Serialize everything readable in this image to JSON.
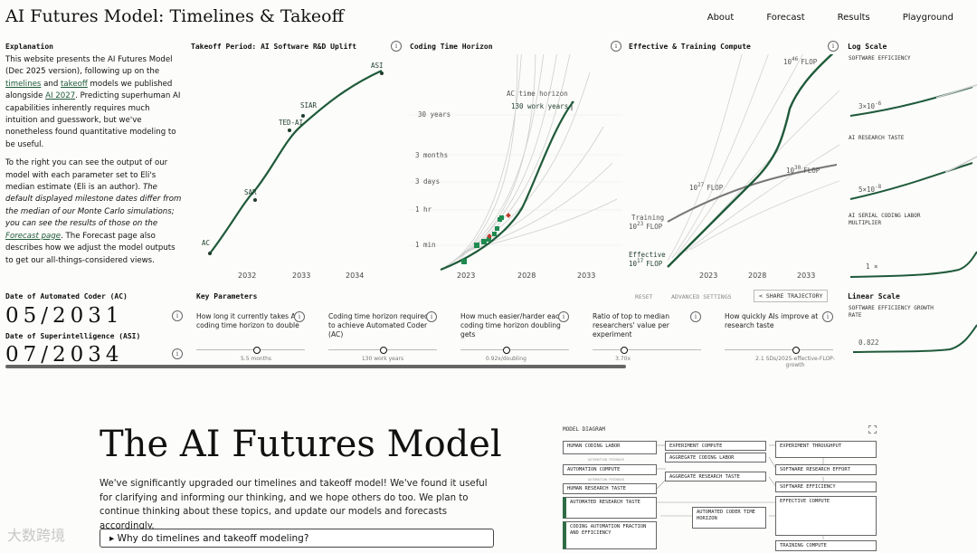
{
  "header": {
    "title": "AI Futures Model: Timelines & Takeoff",
    "nav": [
      "About",
      "Forecast",
      "Results",
      "Playground"
    ]
  },
  "explanation": {
    "heading": "Explanation",
    "p1_a": "This website presents the AI Futures Model (Dec 2025 version), following up on the ",
    "p1_link1": "timelines",
    "p1_b": " and ",
    "p1_link2": "takeoff",
    "p1_c": " models we published alongside ",
    "p1_link3": "AI 2027",
    "p1_d": ". Predicting superhuman AI capabilities inherently requires much intuition and guesswork, but we've nonetheless found quantitative modeling to be useful.",
    "p2_a": "To the right you can see the output of our model with each parameter set to Eli's median estimate (Eli is an author). ",
    "p2_em1": "The default displayed milestone dates differ from the median of our Monte Carlo simulations; you can see the results of those on the ",
    "p2_link": "Forecast page",
    "p2_b": ". The Forecast page also describes how we adjust the model outputs to get our all-things-considered views."
  },
  "takeoff_panel": {
    "title": "Takeoff Period: AI Software R&D Uplift",
    "milestones": [
      "AC",
      "SAR",
      "TED-AI",
      "SIAR",
      "ASI"
    ],
    "x_ticks": [
      "2032",
      "2033",
      "2034"
    ]
  },
  "horizon_panel": {
    "title": "Coding Time Horizon",
    "y_ticks": [
      "30 years",
      "3 months",
      "3 days",
      "1 hr",
      "1 min"
    ],
    "x_ticks": [
      "2023",
      "2028",
      "2033"
    ],
    "annotation_title": "AC time horizon",
    "annotation_value": "130 work years"
  },
  "compute_panel": {
    "title": "Effective & Training Compute",
    "labels": [
      {
        "base": "10",
        "exp": "46",
        "unit": "FLOP"
      },
      {
        "base": "10",
        "exp": "30",
        "unit": "FLOP"
      },
      {
        "base": "10",
        "exp": "27",
        "unit": "FLOP"
      },
      {
        "base": "10",
        "exp": "23",
        "unit": "FLOP"
      },
      {
        "base": "10",
        "exp": "17",
        "unit": "FLOP"
      }
    ],
    "series_training": "Training",
    "series_effective": "Effective",
    "x_ticks": [
      "2023",
      "2028",
      "2033"
    ]
  },
  "log_panel": {
    "title": "Log Scale",
    "software_efficiency": "SOFTWARE EFFICIENCY",
    "se_value_base": "3×10",
    "se_value_exp": "-6",
    "research_taste": "AI RESEARCH TASTE",
    "rt_value_base": "5×10",
    "rt_value_exp": "-8",
    "labor_multiplier": "AI SERIAL CODING LABOR MULTIPLIER",
    "lm_value": "1 ×"
  },
  "linear_panel": {
    "title": "Linear Scale",
    "label": "SOFTWARE EFFICIENCY GROWTH RATE",
    "value": "0.822"
  },
  "dates": {
    "ac_label": "Date of Automated Coder (AC)",
    "ac_value": "05/2031",
    "asi_label": "Date of Superintelligence (ASI)",
    "asi_value": "07/2034"
  },
  "key_params": {
    "title": "Key Parameters",
    "reset": "RESET",
    "advanced": "ADVANCED SETTINGS",
    "share": "SHARE TRAJECTORY",
    "items": [
      {
        "text": "How long it currently takes AIs' coding time horizon to double",
        "value": "5.5 months",
        "level": 0.55
      },
      {
        "text": "Coding time horizon required to achieve Automated Coder (AC)",
        "value": "130 work years",
        "level": 0.5
      },
      {
        "text": "How much easier/harder each coding time horizon doubling gets",
        "value": "0.92x/doubling",
        "level": 0.42
      },
      {
        "text": "Ratio of top to median researchers' value per experiment",
        "value": "3.70x",
        "level": 0.28
      },
      {
        "text": "How quickly AIs improve at research taste",
        "value": "2.1 SDs/2025-effective-FLOP-growth",
        "level": 0.65
      }
    ]
  },
  "hero": {
    "title": "The AI Futures Model",
    "intro": "We've significantly upgraded our timelines and takeoff model! We've found it useful for clarifying and informing our thinking, and we hope others do too. We plan to continue thinking about these topics, and update our models and forecasts accordingly.",
    "faq": "Why do timelines and takeoff modeling?"
  },
  "diagram": {
    "title": "MODEL DIAGRAM",
    "boxes": [
      "HUMAN CODING LABOR",
      "AUTOMATION COMPUTE",
      "HUMAN RESEARCH TASTE",
      "AUTOMATED RESEARCH TASTE",
      "CODING AUTOMATION FRACTION AND EFFICIENCY",
      "EXPERIMENT COMPUTE",
      "AGGREGATE CODING LABOR",
      "AGGREGATE RESEARCH TASTE",
      "AUTOMATED CODER TIME HORIZON",
      "EXPERIMENT THROUGHPUT",
      "SOFTWARE RESEARCH EFFORT",
      "SOFTWARE EFFICIENCY",
      "EFFECTIVE COMPUTE",
      "TRAINING COMPUTE"
    ],
    "edge_labels": [
      "AUTOMATION FEEDBACK",
      "AUTOMATION FEEDBACK"
    ]
  },
  "watermark": "大数跨境",
  "colors": {
    "accent_green": "#1f5a3a",
    "marker_red": "#c0392b",
    "training_grey": "#777777"
  }
}
